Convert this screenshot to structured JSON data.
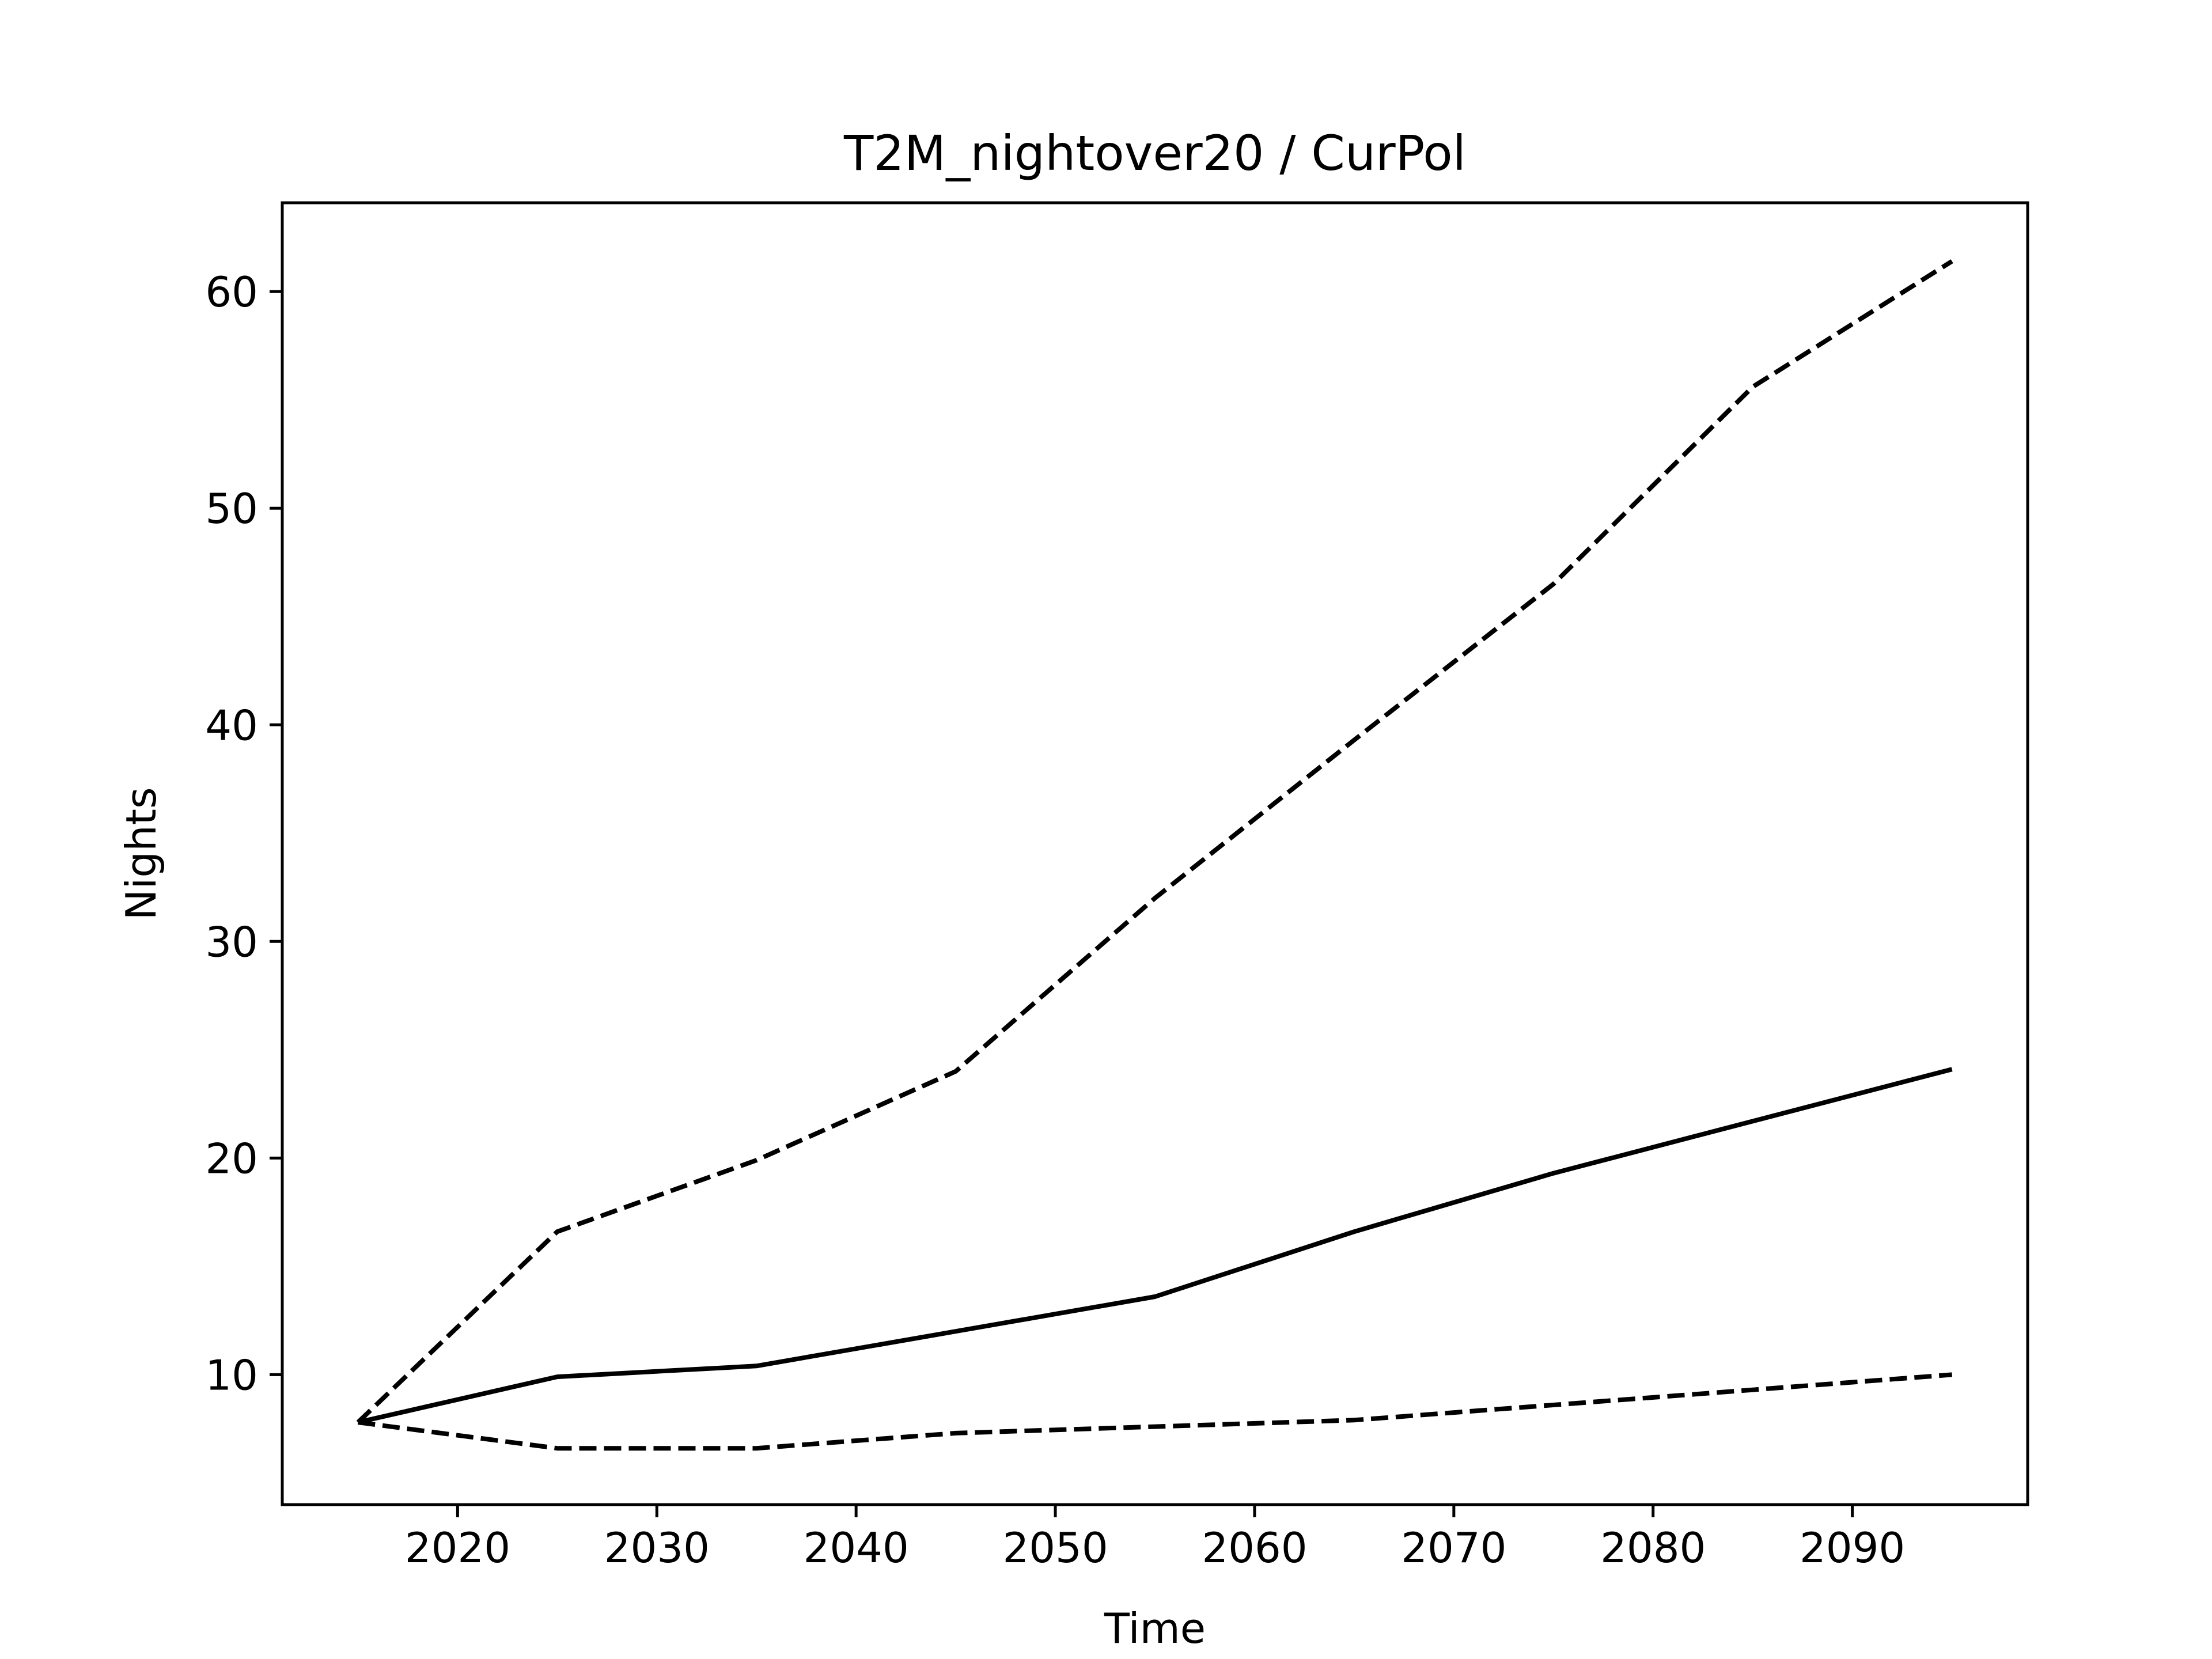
{
  "chart_data": {
    "type": "line",
    "title": "T2M_nightover20 / CurPol",
    "xlabel": "Time",
    "ylabel": "Nights",
    "xlim": [
      2011.2,
      2098.8
    ],
    "ylim": [
      4.0,
      64.1
    ],
    "xticks": [
      2020,
      2030,
      2040,
      2050,
      2060,
      2070,
      2080,
      2090
    ],
    "yticks": [
      10,
      20,
      30,
      40,
      50,
      60
    ],
    "grid": false,
    "legend": "none",
    "x": [
      2015,
      2025,
      2035,
      2045,
      2055,
      2065,
      2075,
      2085,
      2095
    ],
    "series": [
      {
        "style": "solid",
        "color": "#000000",
        "values": [
          7.8,
          9.9,
          10.4,
          12.0,
          13.6,
          16.6,
          19.3,
          21.7,
          24.1
        ]
      },
      {
        "style": "dashed",
        "color": "#000000",
        "values": [
          7.8,
          16.6,
          19.9,
          24.0,
          32.0,
          39.3,
          46.5,
          55.6,
          61.4
        ]
      },
      {
        "style": "dashed",
        "color": "#000000",
        "values": [
          7.8,
          6.6,
          6.6,
          7.3,
          7.6,
          7.9,
          8.6,
          9.3,
          10.0
        ]
      }
    ]
  }
}
